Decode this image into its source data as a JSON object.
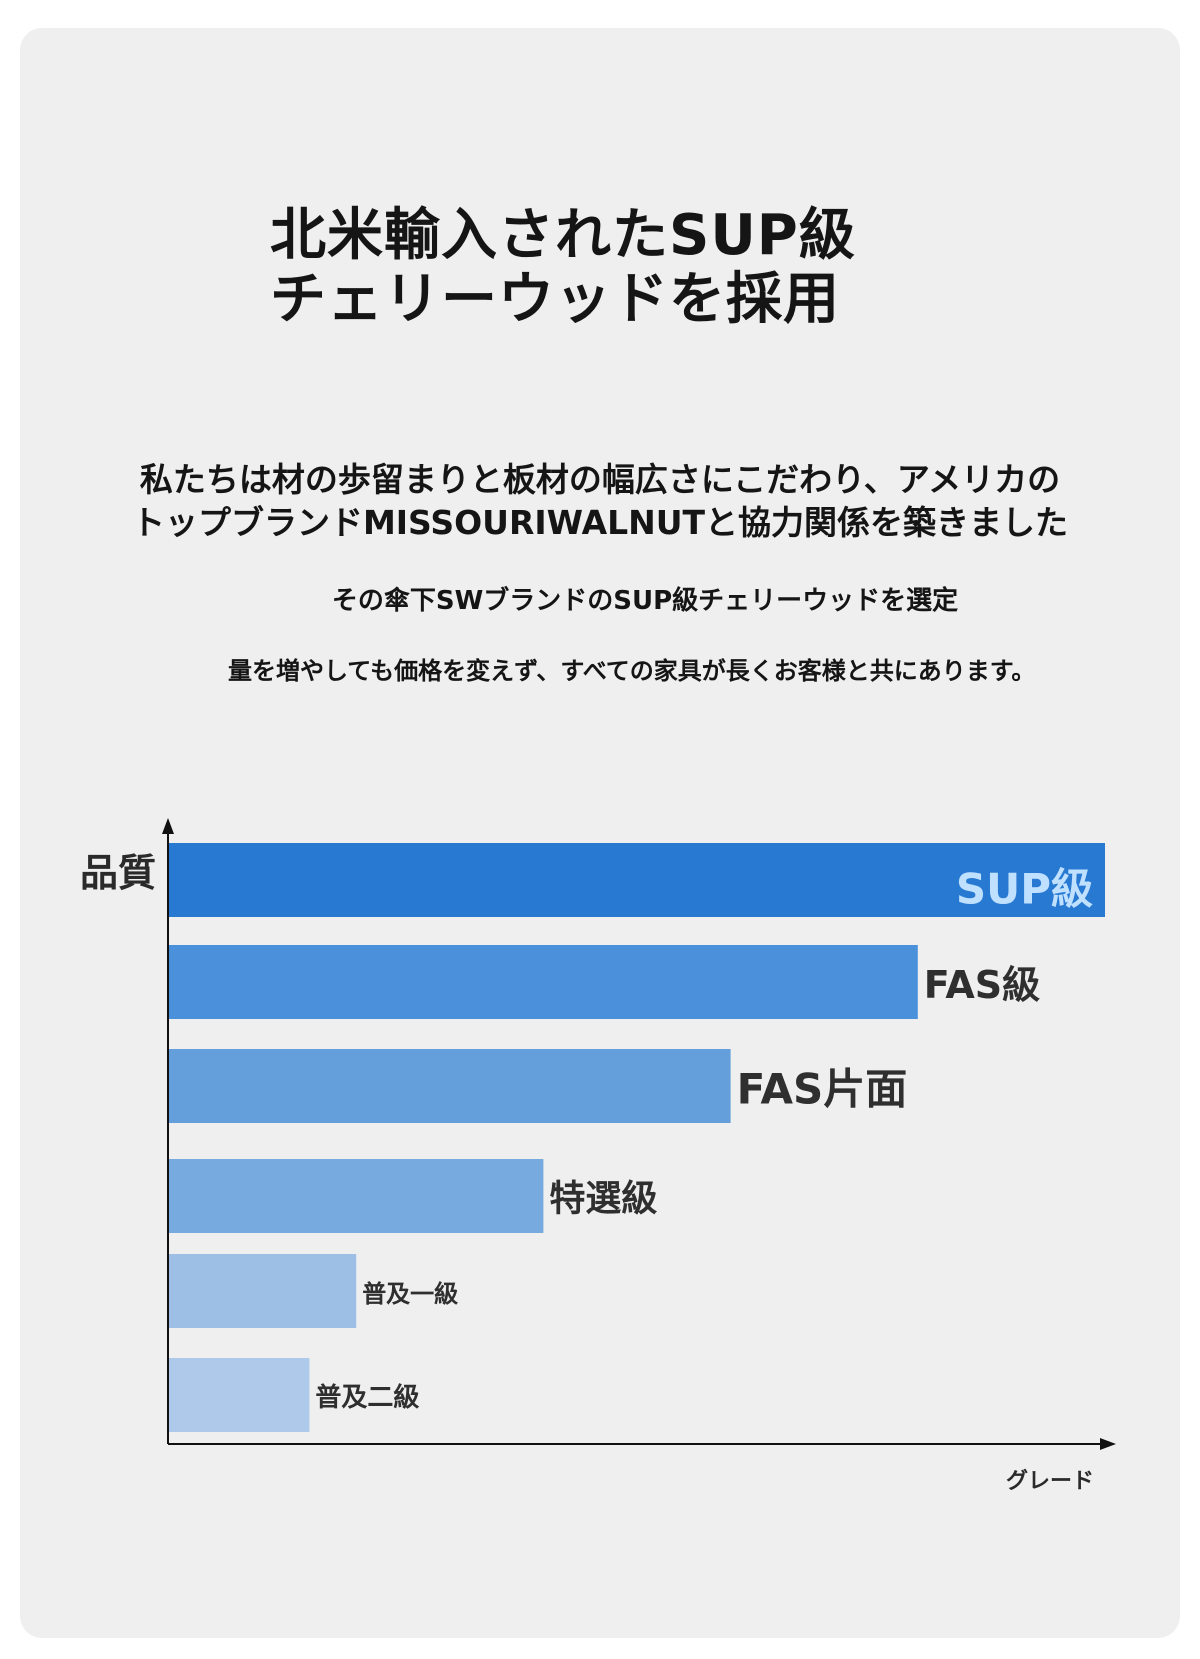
{
  "title": {
    "line1": "北米輸入されたSUP級",
    "line2": "チェリーウッドを採用"
  },
  "intro": {
    "line1": "私たちは材の歩留まりと板材の幅広さにこだわり、アメリカの",
    "line2": "トップブランドMISSOURIWALNUTと協力関係を築きました"
  },
  "subtext": {
    "line1": "その傘下SWブランドのSUP級チェリーウッドを選定",
    "line2": "量を増やしても価格を変えず、すべての家具が長くお客様と共にあります。"
  },
  "chart_data": {
    "type": "bar",
    "orientation": "horizontal",
    "ylabel": "品質",
    "xlabel": "グレード",
    "categories": [
      "SUP級",
      "FAS級",
      "FAS片面",
      "特選級",
      "普及一級",
      "普及二級"
    ],
    "values": [
      100,
      80,
      60,
      40,
      20,
      15
    ],
    "xlim": [
      0,
      100
    ],
    "colors": [
      "#2779d2",
      "#4a90da",
      "#649fdc",
      "#77aade",
      "#9dbfe6",
      "#aec9ea"
    ],
    "inner_label_color": "#bfe0ff",
    "label_color": "#2f2f2f",
    "grid": false,
    "legend": "none"
  }
}
